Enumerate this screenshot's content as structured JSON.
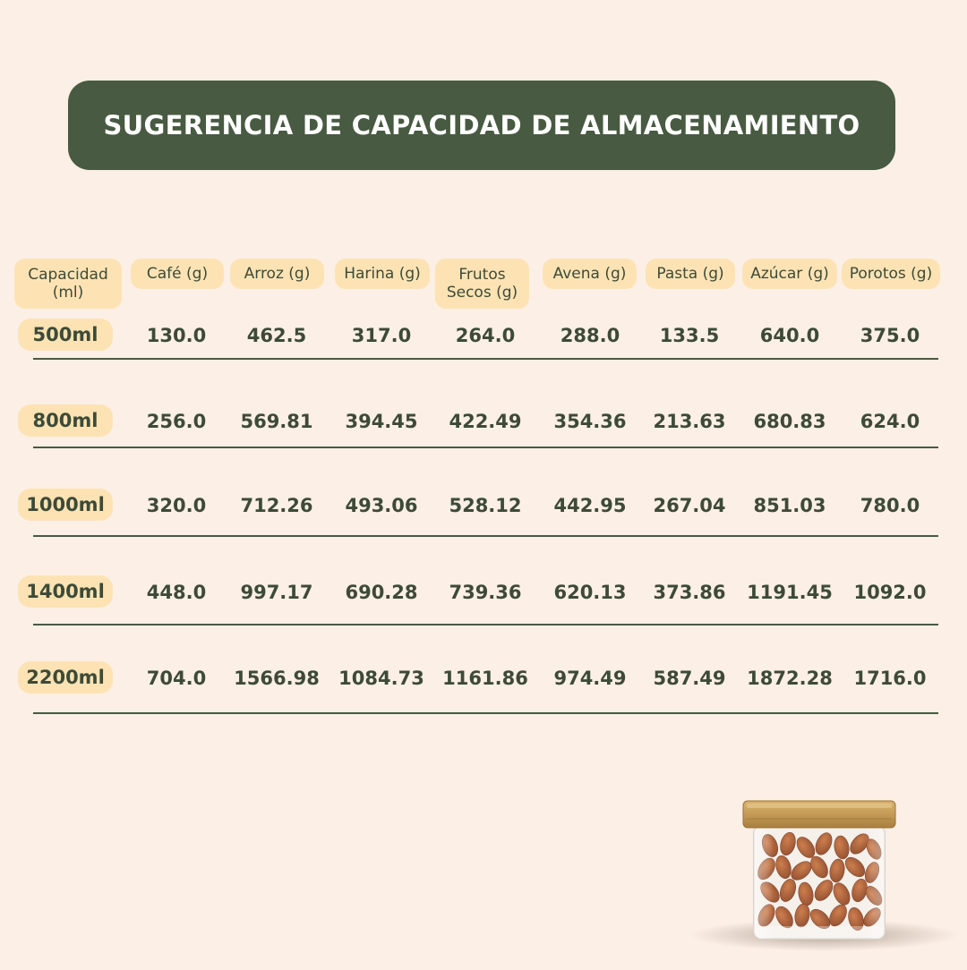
{
  "title": "SUGERENCIA DE CAPACIDAD DE ALMACENAMIENTO",
  "table": {
    "headers": [
      [
        "Capacidad",
        "(ml)"
      ],
      [
        "Café (g)"
      ],
      [
        "Arroz (g)"
      ],
      [
        "Harina (g)"
      ],
      [
        "Frutos",
        "Secos (g)"
      ],
      [
        "Avena (g)"
      ],
      [
        "Pasta (g)"
      ],
      [
        "Azúcar (g)"
      ],
      [
        "Porotos (g)"
      ]
    ],
    "rows": [
      {
        "capacity": "500ml",
        "values": [
          "130.0",
          "462.5",
          "317.0",
          "264.0",
          "288.0",
          "133.5",
          "640.0",
          "375.0"
        ]
      },
      {
        "capacity": "800ml",
        "values": [
          "256.0",
          "569.81",
          "394.45",
          "422.49",
          "354.36",
          "213.63",
          "680.83",
          "624.0"
        ]
      },
      {
        "capacity": "1000ml",
        "values": [
          "320.0",
          "712.26",
          "493.06",
          "528.12",
          "442.95",
          "267.04",
          "851.03",
          "780.0"
        ]
      },
      {
        "capacity": "1400ml",
        "values": [
          "448.0",
          "997.17",
          "690.28",
          "739.36",
          "620.13",
          "373.86",
          "1191.45",
          "1092.0"
        ]
      },
      {
        "capacity": "2200ml",
        "values": [
          "704.0",
          "1566.98",
          "1084.73",
          "1161.86",
          "974.49",
          "587.49",
          "1872.28",
          "1716.0"
        ]
      }
    ]
  },
  "product_image": {
    "icon": "glass-jar-with-almonds-icon"
  },
  "colors": {
    "background": "#fcefe5",
    "title_bar": "#485a41",
    "badge": "#fde3b4",
    "text": "#3d4a37"
  }
}
